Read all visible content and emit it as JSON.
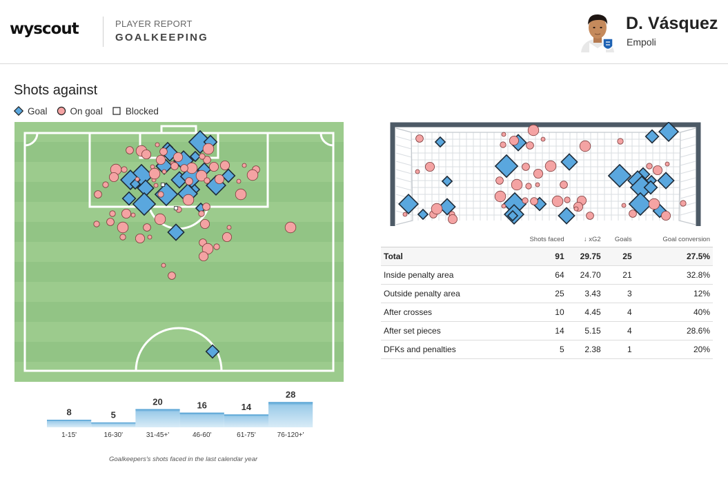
{
  "header": {
    "brand": "wyscout",
    "report_label": "PLAYER REPORT",
    "report_type": "GOALKEEPING",
    "player_name": "D. Vásquez",
    "team": "Empoli"
  },
  "section_title": "Shots against",
  "legend": {
    "goal": "Goal",
    "on_goal": "On goal",
    "blocked": "Blocked"
  },
  "colors": {
    "goal": "#5aa7de",
    "on_goal": "#f4a3a3",
    "pitch_light": "#9ccb8d",
    "pitch_dark": "#92c485",
    "bar_top": "#5ba6d6",
    "goal_frame": "#4d5a66"
  },
  "stats_table": {
    "headers": [
      "",
      "Shots faced",
      "↓ xG2",
      "Goals",
      "Goal conversion"
    ],
    "rows": [
      [
        "Total",
        "91",
        "29.75",
        "25",
        "27.5%"
      ],
      [
        "Inside penalty area",
        "64",
        "24.70",
        "21",
        "32.8%"
      ],
      [
        "Outside penalty area",
        "25",
        "3.43",
        "3",
        "12%"
      ],
      [
        "After crosses",
        "10",
        "4.45",
        "4",
        "40%"
      ],
      [
        "After set pieces",
        "14",
        "5.15",
        "4",
        "28.6%"
      ],
      [
        "DFKs and penalties",
        "5",
        "2.38",
        "1",
        "20%"
      ]
    ]
  },
  "chart_data": [
    {
      "type": "scatter",
      "title": "Shots against",
      "series": [
        {
          "name": "Goal",
          "values": [
            [
              243,
              214
            ],
            [
              246,
              222
            ],
            [
              290,
              206
            ],
            [
              305,
              206
            ],
            [
              266,
              233
            ],
            [
              283,
              227
            ],
            [
              238,
              241
            ],
            [
              205,
              255
            ],
            [
              296,
              246
            ],
            [
              189,
              261
            ],
            [
              196,
              267
            ],
            [
              260,
              261
            ],
            [
              278,
              256
            ],
            [
              331,
              255
            ],
            [
              313,
              269
            ],
            [
              282,
              275
            ],
            [
              211,
              273
            ],
            [
              241,
              282
            ],
            [
              187,
              288
            ],
            [
              272,
              281
            ],
            [
              291,
              302
            ],
            [
              255,
              337
            ],
            [
              209,
              296
            ],
            [
              308,
              510
            ]
          ]
        },
        {
          "name": "On goal",
          "values": [
            [
              228,
              210
            ],
            [
              188,
              218
            ],
            [
              205,
              219
            ],
            [
              214,
              226
            ],
            [
              233,
              232
            ],
            [
              250,
              237
            ],
            [
              300,
              232
            ],
            [
              168,
              246
            ],
            [
              180,
              246
            ],
            [
              326,
              240
            ],
            [
              354,
              240
            ],
            [
              371,
              246
            ],
            [
              366,
              254
            ],
            [
              153,
              268
            ],
            [
              165,
              257
            ],
            [
              223,
              261
            ],
            [
              274,
              263
            ],
            [
              292,
              255
            ],
            [
              300,
              262
            ],
            [
              318,
              260
            ],
            [
              346,
              263
            ],
            [
              142,
              282
            ],
            [
              349,
              282
            ],
            [
              163,
              310
            ],
            [
              183,
              310
            ],
            [
              193,
              312
            ],
            [
              213,
              330
            ],
            [
              232,
              318
            ],
            [
              292,
              310
            ],
            [
              297,
              325
            ],
            [
              332,
              330
            ],
            [
              160,
              322
            ],
            [
              178,
              330
            ],
            [
              178,
              344
            ],
            [
              203,
              346
            ],
            [
              217,
              344
            ],
            [
              294,
              352
            ],
            [
              301,
              361
            ],
            [
              314,
              358
            ],
            [
              295,
              372
            ],
            [
              237,
              385
            ],
            [
              249,
              400
            ],
            [
              421,
              330
            ],
            [
              140,
              325
            ],
            [
              329,
              344
            ],
            [
              199,
              260
            ],
            [
              253,
              241
            ],
            [
              278,
              244
            ],
            [
              233,
              282
            ],
            [
              310,
              242
            ],
            [
              238,
              249
            ],
            [
              267,
              244
            ],
            [
              302,
              216
            ],
            [
              293,
              227
            ],
            [
              258,
              228
            ],
            [
              221,
              242
            ],
            [
              299,
              300
            ],
            [
              273,
              290
            ],
            [
              259,
              304
            ],
            [
              212,
              224
            ],
            [
              226,
              269
            ],
            [
              237,
              220
            ],
            [
              224,
              252
            ]
          ]
        },
        {
          "name": "Blocked",
          "values": [
            [
              236,
              268
            ],
            [
              255,
              302
            ]
          ]
        }
      ]
    },
    {
      "type": "scatter",
      "series": [
        {
          "name": "Goal",
          "values": [
            [
              638,
              206
            ],
            [
              751,
              207
            ],
            [
              734,
              241
            ],
            [
              945,
              198
            ],
            [
              969,
              191
            ],
            [
              648,
              263
            ],
            [
              825,
              235
            ],
            [
              898,
              255
            ],
            [
              932,
              253
            ],
            [
              924,
              262
            ],
            [
              944,
              262
            ],
            [
              965,
              262
            ],
            [
              930,
              272
            ],
            [
              943,
              272
            ],
            [
              592,
              296
            ],
            [
              613,
              311
            ],
            [
              648,
              300
            ],
            [
              746,
              296
            ],
            [
              782,
              296
            ],
            [
              745,
              311
            ],
            [
              743,
              313
            ],
            [
              821,
              313
            ],
            [
              928,
              296
            ],
            [
              956,
              306
            ]
          ]
        },
        {
          "name": "On goal",
          "values": [
            [
              730,
              195
            ],
            [
              608,
              201
            ],
            [
              773,
              189
            ],
            [
              729,
              210
            ],
            [
              745,
              204
            ],
            [
              787,
              202
            ],
            [
              768,
              211
            ],
            [
              848,
              212
            ],
            [
              899,
              205
            ],
            [
              623,
              242
            ],
            [
              605,
              249
            ],
            [
              762,
              242
            ],
            [
              798,
              241
            ],
            [
              941,
              241
            ],
            [
              953,
              247
            ],
            [
              967,
              238
            ],
            [
              724,
              262
            ],
            [
              749,
              268
            ],
            [
              766,
              270
            ],
            [
              780,
              252
            ],
            [
              779,
              268
            ],
            [
              817,
              268
            ],
            [
              725,
              285
            ],
            [
              761,
              291
            ],
            [
              843,
              291
            ],
            [
              587,
              311
            ],
            [
              628,
              311
            ],
            [
              633,
              303
            ],
            [
              655,
              311
            ],
            [
              656,
              318
            ],
            [
              730,
              299
            ],
            [
              774,
              292
            ],
            [
              808,
              292
            ],
            [
              822,
              290
            ],
            [
              838,
              300
            ],
            [
              904,
              298
            ],
            [
              917,
              310
            ],
            [
              948,
              296
            ],
            [
              990,
              295
            ],
            [
              965,
              313
            ],
            [
              835,
              303
            ],
            [
              855,
              313
            ]
          ]
        }
      ]
    },
    {
      "type": "bar",
      "categories": [
        "1-15'",
        "16-30'",
        "31-45+'",
        "46-60'",
        "61-75'",
        "76-120+'"
      ],
      "values": [
        8,
        5,
        20,
        16,
        14,
        28
      ]
    }
  ],
  "caption": "Goalkeepers's shots faced in the last calendar year"
}
